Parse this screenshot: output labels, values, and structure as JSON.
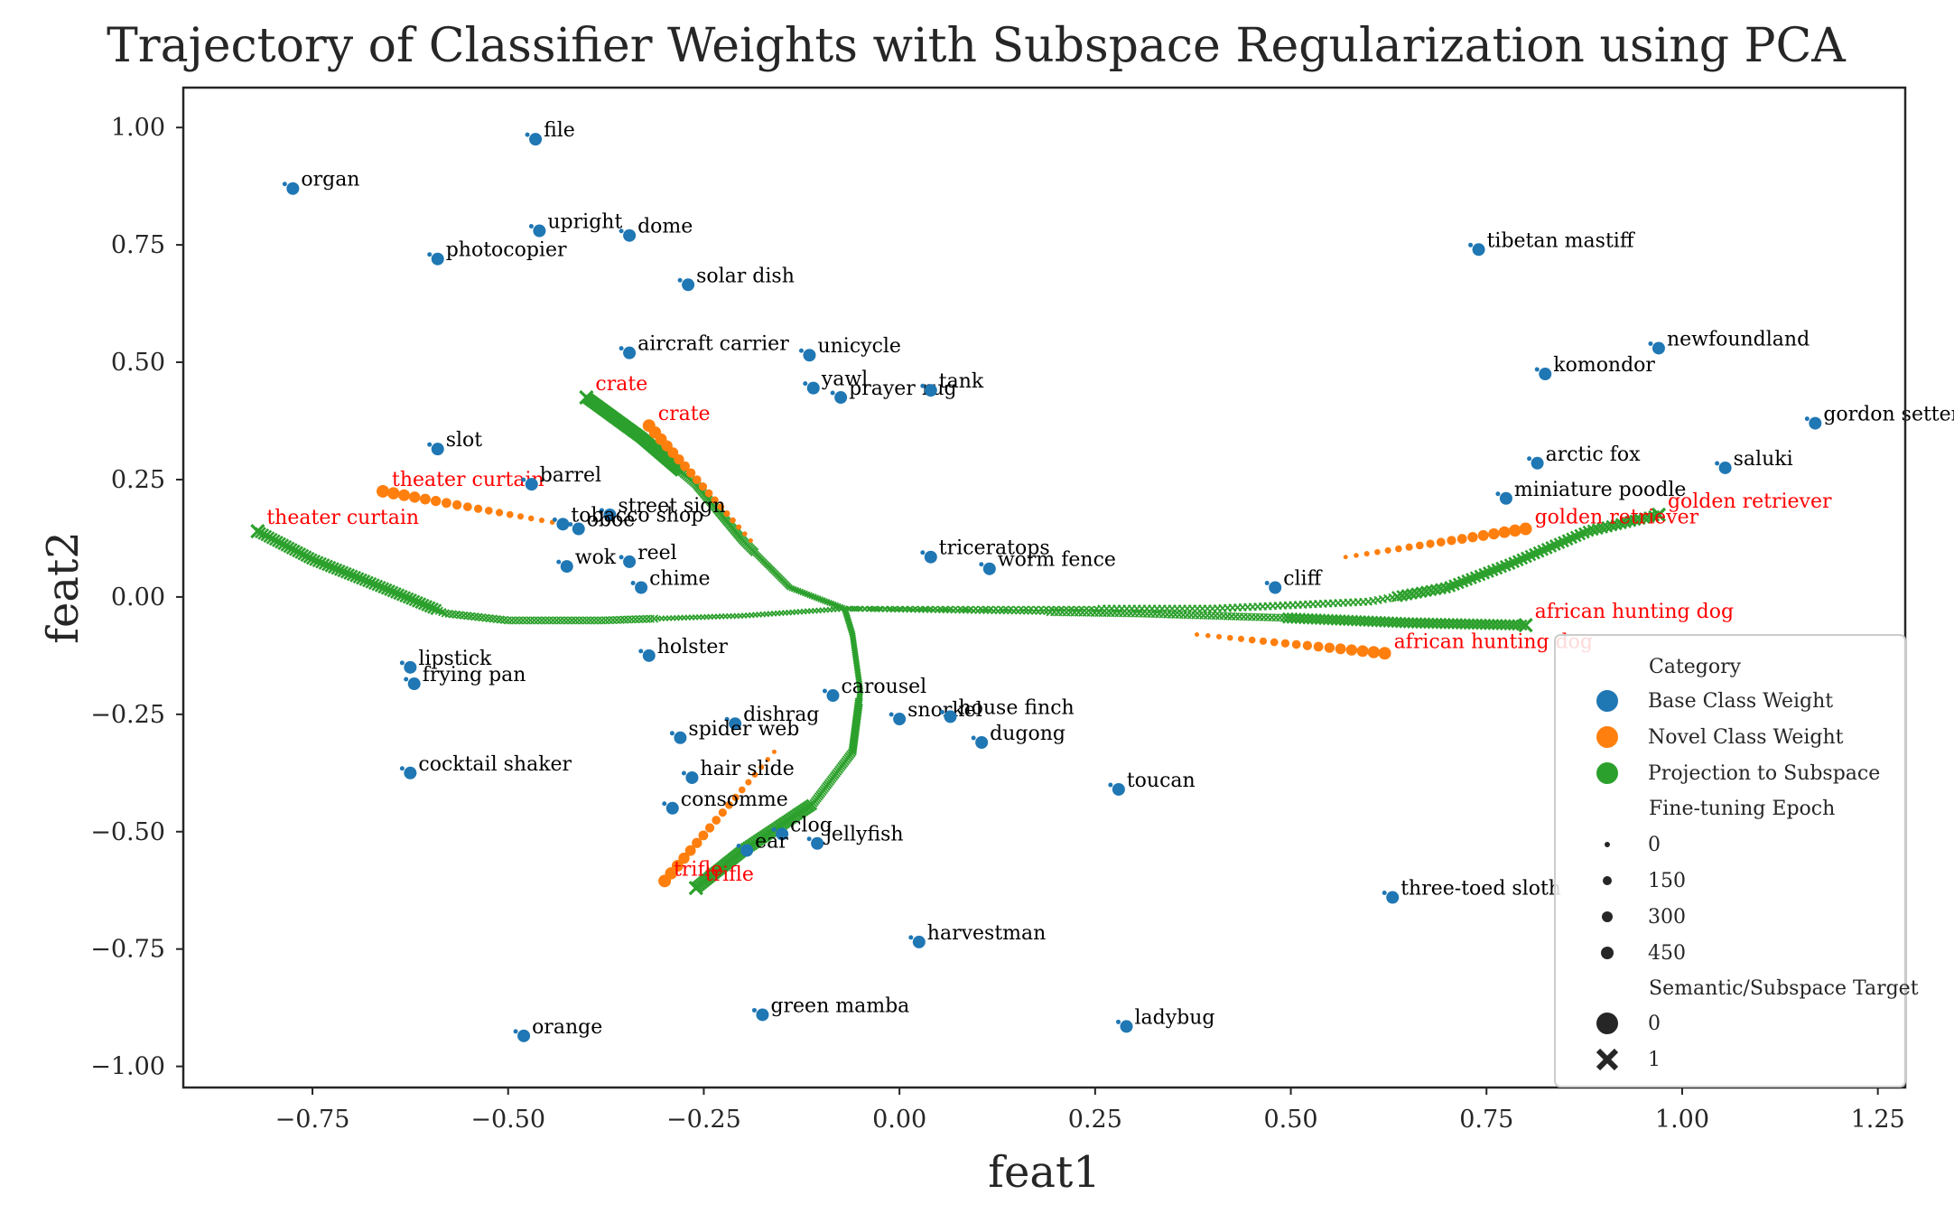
{
  "chart_data": {
    "type": "scatter",
    "title": "Trajectory of Classifier Weights with Subspace Regularization using PCA",
    "xlabel": "feat1",
    "ylabel": "feat2",
    "xlim": [
      -0.915,
      1.285
    ],
    "ylim": [
      -1.045,
      1.085
    ],
    "xticks": [
      -0.75,
      -0.5,
      -0.25,
      0.0,
      0.25,
      0.5,
      0.75,
      1.0,
      1.25
    ],
    "xtick_labels": [
      "−0.75",
      "−0.50",
      "−0.25",
      "0.00",
      "0.25",
      "0.50",
      "0.75",
      "1.00",
      "1.25"
    ],
    "yticks": [
      -1.0,
      -0.75,
      -0.5,
      -0.25,
      0.0,
      0.25,
      0.5,
      0.75,
      1.0
    ],
    "ytick_labels": [
      "−1.00",
      "−0.75",
      "−0.50",
      "−0.25",
      "0.00",
      "0.25",
      "0.50",
      "0.75",
      "1.00"
    ],
    "grid": false,
    "legend_position": "lower-right",
    "colors": {
      "base": "#1f77b4",
      "novel": "#ff7f0e",
      "projection": "#2ca02c",
      "novel_label": "#ff0000"
    },
    "legend": {
      "category_title": "Category",
      "categories": [
        {
          "label": "Base Class Weight",
          "color": "#1f77b4"
        },
        {
          "label": "Novel Class Weight",
          "color": "#ff7f0e"
        },
        {
          "label": "Projection to Subspace",
          "color": "#2ca02c"
        }
      ],
      "epoch_title": "Fine-tuning Epoch",
      "epochs": [
        "0",
        "150",
        "300",
        "450"
      ],
      "target_title": "Semantic/Subspace Target",
      "targets": [
        {
          "label": "0",
          "marker": "circle"
        },
        {
          "label": "1",
          "marker": "x"
        }
      ]
    },
    "base_points": [
      {
        "label": "file",
        "x": -0.465,
        "y": 0.975
      },
      {
        "label": "organ",
        "x": -0.775,
        "y": 0.87
      },
      {
        "label": "upright",
        "x": -0.46,
        "y": 0.78
      },
      {
        "label": "dome",
        "x": -0.345,
        "y": 0.77
      },
      {
        "label": "photocopier",
        "x": -0.59,
        "y": 0.72
      },
      {
        "label": "solar dish",
        "x": -0.27,
        "y": 0.665
      },
      {
        "label": "aircraft carrier",
        "x": -0.345,
        "y": 0.52
      },
      {
        "label": "unicycle",
        "x": -0.115,
        "y": 0.515
      },
      {
        "label": "yawl",
        "x": -0.11,
        "y": 0.445
      },
      {
        "label": "prayer rug",
        "x": -0.075,
        "y": 0.425
      },
      {
        "label": "tank",
        "x": 0.04,
        "y": 0.44
      },
      {
        "label": "slot",
        "x": -0.59,
        "y": 0.315
      },
      {
        "label": "barrel",
        "x": -0.47,
        "y": 0.24
      },
      {
        "label": "street sign",
        "x": -0.37,
        "y": 0.175
      },
      {
        "label": "tobacco shop",
        "x": -0.43,
        "y": 0.155
      },
      {
        "label": "oboe",
        "x": -0.41,
        "y": 0.145
      },
      {
        "label": "wok",
        "x": -0.425,
        "y": 0.065
      },
      {
        "label": "reel",
        "x": -0.345,
        "y": 0.075
      },
      {
        "label": "chime",
        "x": -0.33,
        "y": 0.02
      },
      {
        "label": "holster",
        "x": -0.32,
        "y": -0.125
      },
      {
        "label": "lipstick",
        "x": -0.625,
        "y": -0.15
      },
      {
        "label": "frying pan",
        "x": -0.62,
        "y": -0.185
      },
      {
        "label": "cocktail shaker",
        "x": -0.625,
        "y": -0.375
      },
      {
        "label": "carousel",
        "x": -0.085,
        "y": -0.21
      },
      {
        "label": "dishrag",
        "x": -0.21,
        "y": -0.27
      },
      {
        "label": "spider web",
        "x": -0.28,
        "y": -0.3
      },
      {
        "label": "hair slide",
        "x": -0.265,
        "y": -0.385
      },
      {
        "label": "consomme",
        "x": -0.29,
        "y": -0.45
      },
      {
        "label": "clog",
        "x": -0.15,
        "y": -0.505
      },
      {
        "label": "jellyfish",
        "x": -0.105,
        "y": -0.525
      },
      {
        "label": "ear",
        "x": -0.195,
        "y": -0.54
      },
      {
        "label": "triceratops",
        "x": 0.04,
        "y": 0.085
      },
      {
        "label": "worm fence",
        "x": 0.115,
        "y": 0.06
      },
      {
        "label": "snorkel",
        "x": 0.0,
        "y": -0.26
      },
      {
        "label": "house finch",
        "x": 0.065,
        "y": -0.255
      },
      {
        "label": "dugong",
        "x": 0.105,
        "y": -0.31
      },
      {
        "label": "toucan",
        "x": 0.28,
        "y": -0.41
      },
      {
        "label": "harvestman",
        "x": 0.025,
        "y": -0.735
      },
      {
        "label": "green mamba",
        "x": -0.175,
        "y": -0.89
      },
      {
        "label": "ladybug",
        "x": 0.29,
        "y": -0.915
      },
      {
        "label": "orange",
        "x": -0.48,
        "y": -0.935
      },
      {
        "label": "cliff",
        "x": 0.48,
        "y": 0.02
      },
      {
        "label": "tibetan mastiff",
        "x": 0.74,
        "y": 0.74
      },
      {
        "label": "newfoundland",
        "x": 0.97,
        "y": 0.53
      },
      {
        "label": "komondor",
        "x": 0.825,
        "y": 0.475
      },
      {
        "label": "gordon setter",
        "x": 1.17,
        "y": 0.37
      },
      {
        "label": "arctic fox",
        "x": 0.815,
        "y": 0.285
      },
      {
        "label": "saluki",
        "x": 1.055,
        "y": 0.275
      },
      {
        "label": "miniature poodle",
        "x": 0.775,
        "y": 0.21
      },
      {
        "label": "three-toed sloth",
        "x": 0.63,
        "y": -0.64
      }
    ],
    "novel_trajectories": [
      {
        "label": "theater curtain",
        "start": [
          -0.66,
          0.225
        ],
        "end": [
          -0.43,
          0.155
        ]
      },
      {
        "label": "crate",
        "start": [
          -0.32,
          0.365
        ],
        "end": [
          -0.19,
          0.12
        ]
      },
      {
        "label": "trifle",
        "start": [
          -0.3,
          -0.605
        ],
        "end": [
          -0.16,
          -0.33
        ]
      },
      {
        "label": "golden retriever",
        "start": [
          0.8,
          0.145
        ],
        "end": [
          0.57,
          0.085
        ]
      },
      {
        "label": "african hunting dog",
        "start": [
          0.62,
          -0.12
        ],
        "end": [
          0.38,
          -0.08
        ]
      }
    ],
    "projection_trajectories": [
      {
        "label": "theater curtain",
        "end": [
          -0.82,
          0.14
        ],
        "path": [
          [
            -0.82,
            0.14
          ],
          [
            -0.75,
            0.08
          ],
          [
            -0.66,
            0.02
          ],
          [
            -0.58,
            -0.035
          ],
          [
            -0.5,
            -0.05
          ],
          [
            -0.38,
            -0.05
          ],
          [
            -0.2,
            -0.04
          ],
          [
            -0.07,
            -0.025
          ]
        ]
      },
      {
        "label": "crate",
        "end": [
          -0.4,
          0.425
        ],
        "path": [
          [
            -0.4,
            0.425
          ],
          [
            -0.33,
            0.34
          ],
          [
            -0.26,
            0.24
          ],
          [
            -0.2,
            0.12
          ],
          [
            -0.14,
            0.02
          ],
          [
            -0.07,
            -0.025
          ]
        ]
      },
      {
        "label": "trifle",
        "end": [
          -0.26,
          -0.62
        ],
        "path": [
          [
            -0.26,
            -0.62
          ],
          [
            -0.2,
            -0.54
          ],
          [
            -0.11,
            -0.44
          ],
          [
            -0.06,
            -0.33
          ],
          [
            -0.05,
            -0.2
          ],
          [
            -0.06,
            -0.08
          ],
          [
            -0.07,
            -0.025
          ]
        ]
      },
      {
        "label": "golden retriever",
        "end": [
          0.97,
          0.175
        ],
        "path": [
          [
            0.97,
            0.175
          ],
          [
            0.88,
            0.14
          ],
          [
            0.78,
            0.07
          ],
          [
            0.7,
            0.02
          ],
          [
            0.6,
            -0.01
          ],
          [
            0.4,
            -0.025
          ],
          [
            0.15,
            -0.025
          ],
          [
            -0.07,
            -0.025
          ]
        ]
      },
      {
        "label": "african hunting dog",
        "end": [
          0.8,
          -0.06
        ],
        "path": [
          [
            0.8,
            -0.06
          ],
          [
            0.65,
            -0.055
          ],
          [
            0.5,
            -0.045
          ],
          [
            0.3,
            -0.035
          ],
          [
            0.1,
            -0.03
          ],
          [
            -0.07,
            -0.025
          ]
        ]
      }
    ]
  }
}
